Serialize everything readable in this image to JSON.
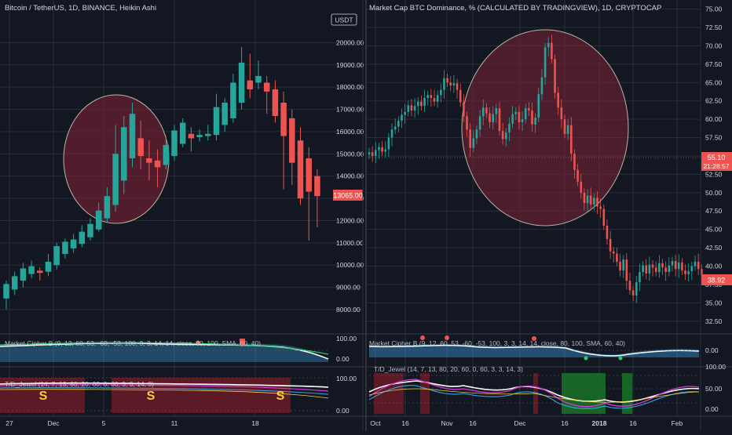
{
  "colors": {
    "background": "#131722",
    "grid": "#2a2e39",
    "axis_text": "#d1d4dc",
    "up": "#26a69a",
    "down": "#ef5350",
    "highlight_fill": "#7b2236",
    "highlight_stroke": "#b7b7a0",
    "price_label_bg": "#ef5350",
    "white": "#ffffff",
    "yellow": "#f4d03f",
    "magenta": "#d63cd6",
    "cyan": "#3aa6e8",
    "green_fill": "#1a7f2a",
    "red_fill": "#5c1a26"
  },
  "left_panel": {
    "title": "Bitcoin / TetherUS, 1D, BINANCE, Heikin Ashi",
    "currency_badge": "USDT",
    "last_price_label": "13065.00",
    "x_ticks": [
      "27",
      "Dec",
      "5",
      "11",
      "18"
    ],
    "indicator1_title": "Market Cipher B (9, 12, 60, 53, -60, -53, 100, 3, 3, 14, 14, close, 80, 100, SMA, 60, 40)",
    "indicator1_ticks": [
      "100.00",
      "0.00"
    ],
    "indicator2_title": "T/D_Jewel (14, 7, 13, 80, 20, 60, 0, 60, 3, 3, 14, 3)",
    "indicator2_ticks": [
      "100.00",
      "0.00"
    ],
    "signal_label": "S"
  },
  "right_panel": {
    "title": "Market Cap BTC Dominance, % (CALCULATED BY TRADINGVIEW), 1D, CRYPTOCAP",
    "last_price_label": "55.10",
    "countdown_label": "21:28:57",
    "second_price_label": "38.92",
    "x_ticks": [
      "Oct",
      "16",
      "Nov",
      "16",
      "Dec",
      "16",
      "2018",
      "16",
      "Feb"
    ],
    "indicator1_title": "Market Cipher B (9, 12, 60, 53, -60, -53, 100, 3, 3, 14, 14, close, 80, 100, SMA, 60, 40)",
    "indicator1_ticks": [
      "0.00"
    ],
    "indicator2_title": "T/D_Jewel (14, 7, 13, 80, 20, 60, 0, 60, 3, 3, 14, 3)",
    "indicator2_ticks": [
      "100.00",
      "50.00",
      "0.00"
    ]
  },
  "chart_data": [
    {
      "type": "candlestick",
      "title": "Bitcoin / TetherUS, 1D, BINANCE, Heikin Ashi",
      "y_ticks": [
        "20000.00",
        "19000.00",
        "18000.00",
        "17000.00",
        "16000.00",
        "15000.00",
        "14000.00",
        "13000.00",
        "12000.00",
        "11000.00",
        "10000.00",
        "9000.00",
        "8000.00"
      ],
      "ylim": [
        7400,
        21000
      ],
      "candles": [
        {
          "o": 8500,
          "c": 9150,
          "h": 9300,
          "l": 8000
        },
        {
          "o": 8900,
          "c": 9500,
          "h": 9700,
          "l": 8650
        },
        {
          "o": 9300,
          "c": 9850,
          "h": 10100,
          "l": 9000
        },
        {
          "o": 9600,
          "c": 9950,
          "h": 10200,
          "l": 9400
        },
        {
          "o": 9750,
          "c": 9650,
          "h": 9900,
          "l": 9300
        },
        {
          "o": 9700,
          "c": 10150,
          "h": 10500,
          "l": 9500
        },
        {
          "o": 10000,
          "c": 10850,
          "h": 11000,
          "l": 9800
        },
        {
          "o": 10500,
          "c": 11050,
          "h": 11200,
          "l": 10300
        },
        {
          "o": 10750,
          "c": 11150,
          "h": 11400,
          "l": 10550
        },
        {
          "o": 10950,
          "c": 11500,
          "h": 11800,
          "l": 10800
        },
        {
          "o": 11250,
          "c": 11850,
          "h": 12100,
          "l": 11100
        },
        {
          "o": 11600,
          "c": 12450,
          "h": 12800,
          "l": 11500
        },
        {
          "o": 12100,
          "c": 13100,
          "h": 13500,
          "l": 11900
        },
        {
          "o": 12700,
          "c": 15000,
          "h": 16300,
          "l": 12400
        },
        {
          "o": 13800,
          "c": 16200,
          "h": 16700,
          "l": 13200
        },
        {
          "o": 14800,
          "c": 16800,
          "h": 17300,
          "l": 14400
        },
        {
          "o": 15700,
          "c": 14900,
          "h": 16500,
          "l": 14300
        },
        {
          "o": 14800,
          "c": 14600,
          "h": 15600,
          "l": 13800
        },
        {
          "o": 14700,
          "c": 14400,
          "h": 15200,
          "l": 13500
        },
        {
          "o": 14500,
          "c": 15400,
          "h": 15800,
          "l": 14300
        },
        {
          "o": 14900,
          "c": 16050,
          "h": 16300,
          "l": 14700
        },
        {
          "o": 15450,
          "c": 16400,
          "h": 16600,
          "l": 15300
        },
        {
          "o": 15900,
          "c": 15700,
          "h": 16200,
          "l": 15100
        },
        {
          "o": 15750,
          "c": 15850,
          "h": 16100,
          "l": 15550
        },
        {
          "o": 15800,
          "c": 15900,
          "h": 16300,
          "l": 15600
        },
        {
          "o": 15850,
          "c": 17100,
          "h": 17700,
          "l": 15600
        },
        {
          "o": 16300,
          "c": 17300,
          "h": 17500,
          "l": 16000
        },
        {
          "o": 16600,
          "c": 18200,
          "h": 18600,
          "l": 16400
        },
        {
          "o": 17300,
          "c": 19100,
          "h": 19800,
          "l": 17000
        },
        {
          "o": 18300,
          "c": 17900,
          "h": 19500,
          "l": 17500
        },
        {
          "o": 18200,
          "c": 18500,
          "h": 19200,
          "l": 17900
        },
        {
          "o": 18200,
          "c": 17800,
          "h": 18500,
          "l": 16800
        },
        {
          "o": 17900,
          "c": 16700,
          "h": 18300,
          "l": 16400
        },
        {
          "o": 17300,
          "c": 15800,
          "h": 17800,
          "l": 13400
        },
        {
          "o": 16600,
          "c": 14600,
          "h": 17000,
          "l": 13600
        },
        {
          "o": 15600,
          "c": 13000,
          "h": 16200,
          "l": 12700
        },
        {
          "o": 14800,
          "c": 13300,
          "h": 15300,
          "l": 11100
        },
        {
          "o": 14000,
          "c": 13100,
          "h": 14300,
          "l": 11700
        }
      ]
    },
    {
      "type": "candlestick",
      "title": "Market Cap BTC Dominance, % (CALCULATED BY TRADINGVIEW), 1D, CRYPTOCAP",
      "y_ticks": [
        "75.00",
        "72.50",
        "70.00",
        "67.50",
        "65.00",
        "62.50",
        "60.00",
        "57.50",
        "55.00",
        "52.50",
        "50.00",
        "47.50",
        "45.00",
        "42.50",
        "40.00",
        "37.50",
        "35.00",
        "32.50"
      ],
      "ylim": [
        31.3,
        75.6
      ],
      "closes": [
        55.5,
        55.0,
        55.8,
        56.2,
        55.6,
        55.9,
        57.5,
        58.6,
        59.0,
        59.8,
        60.6,
        61.0,
        61.9,
        61.2,
        61.8,
        62.4,
        61.8,
        62.9,
        63.3,
        62.9,
        62.4,
        63.3,
        64.0,
        65.6,
        65.0,
        64.6,
        64.9,
        64.0,
        62.3,
        60.4,
        58.6,
        56.1,
        57.4,
        58.6,
        60.4,
        61.6,
        60.8,
        59.6,
        60.7,
        61.5,
        58.4,
        57.3,
        58.2,
        59.4,
        60.7,
        61.0,
        59.6,
        60.0,
        61.5,
        61.2,
        59.3,
        60.2,
        63.4,
        65.7,
        69.8,
        70.4,
        68.2,
        63.6,
        61.6,
        60.0,
        58.0,
        59.2,
        55.3,
        53.1,
        51.5,
        50.0,
        48.6,
        49.6,
        48.4,
        49.3,
        48.1,
        47.8,
        45.5,
        43.7,
        42.0,
        41.7,
        40.6,
        39.4,
        40.9,
        38.0,
        36.7,
        36.0,
        37.8,
        39.2,
        40.1,
        39.0,
        40.2,
        39.8,
        39.2,
        40.4,
        39.8,
        39.2,
        40.1,
        40.7,
        39.6,
        40.5,
        39.4,
        38.9,
        39.3,
        40.0,
        40.6,
        39.6,
        38.9
      ]
    }
  ]
}
